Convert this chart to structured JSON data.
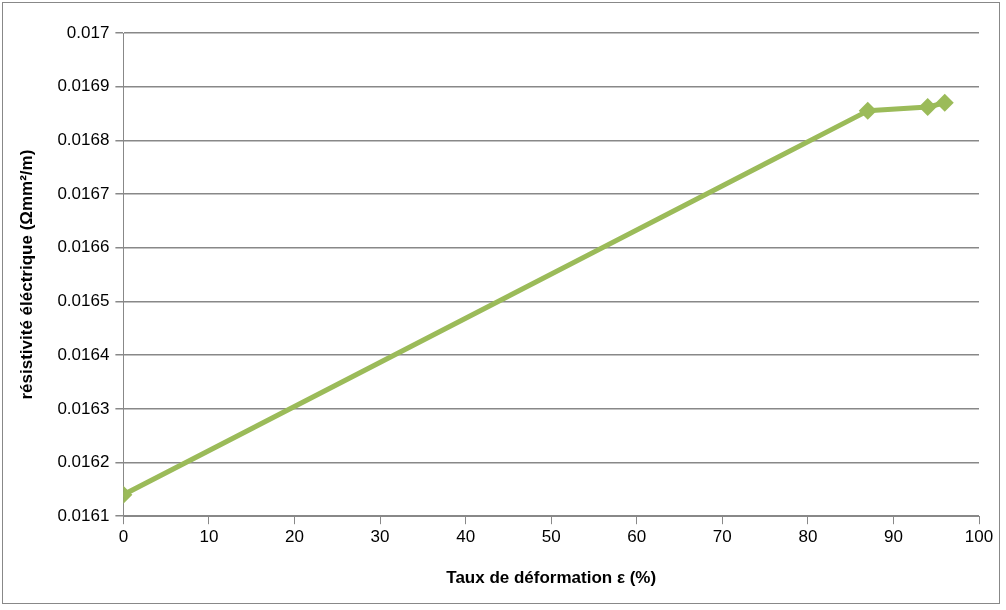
{
  "chart_data": {
    "type": "line",
    "xlabel": "Taux de déformation ε (%)",
    "ylabel": "résistivité éléctrique (Ωmm²/m)",
    "x": [
      0,
      87,
      94,
      96
    ],
    "series": [
      {
        "color": "#9bbb59",
        "values": [
          0.01614,
          0.016855,
          0.016862,
          0.01687
        ]
      }
    ],
    "xlim": [
      0,
      100
    ],
    "xticks": [
      0,
      10,
      20,
      30,
      40,
      50,
      60,
      70,
      80,
      90,
      100
    ],
    "ylim": [
      0.0161,
      0.017
    ],
    "yticks": [
      0.0161,
      0.0162,
      0.0163,
      0.0164,
      0.0165,
      0.0166,
      0.0167,
      0.0168,
      0.0169,
      0.017
    ],
    "grid": "y",
    "legend": false,
    "marker": "diamond",
    "line_style": "solid"
  }
}
